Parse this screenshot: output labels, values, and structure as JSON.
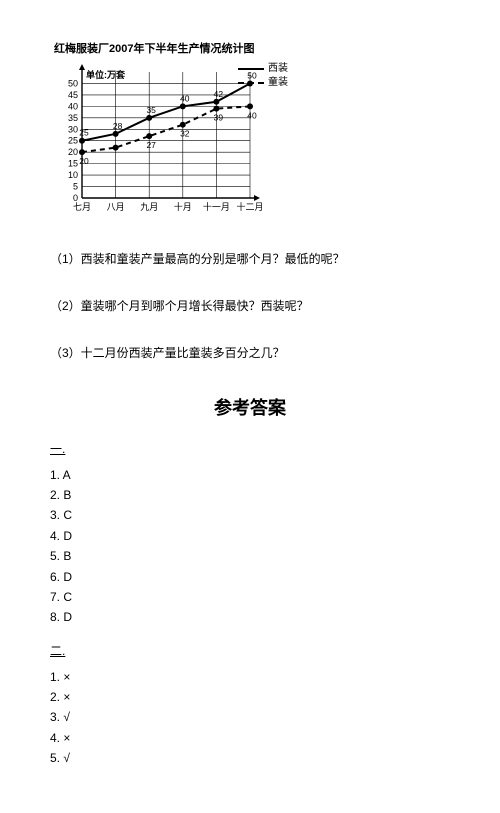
{
  "chart": {
    "title": "红梅服装厂2007年下半年生产情况统计图",
    "unit_label": "单位:万套",
    "legend": {
      "series_a": "西装",
      "series_b": "童装"
    },
    "y": {
      "min": 0,
      "max": 55,
      "ticks": [
        0,
        5,
        10,
        15,
        20,
        25,
        30,
        35,
        40,
        45,
        50
      ]
    },
    "x_labels": [
      "七月",
      "八月",
      "九月",
      "十月",
      "十一月",
      "十二月"
    ],
    "series_a": {
      "values": [
        25,
        28,
        35,
        40,
        42,
        50
      ],
      "show_labels": [
        25,
        28,
        35,
        40,
        42,
        50
      ],
      "color": "#000000"
    },
    "series_b": {
      "values": [
        20,
        22,
        27,
        32,
        39,
        40
      ],
      "show_labels": [
        20,
        "",
        27,
        32,
        39,
        40
      ],
      "color": "#000000"
    },
    "plot": {
      "bg": "#ffffff",
      "grid_color": "#000000",
      "line_width": 2,
      "marker_size": 3
    }
  },
  "questions": {
    "q1": "（1）西装和童装产量最高的分别是哪个月？最低的呢？",
    "q2": "（2）童装哪个月到哪个月增长得最快？西装呢？",
    "q3": "（3）十二月份西装产量比童装多百分之几？"
  },
  "answers": {
    "title": "参考答案",
    "section1": {
      "label": "一.",
      "items": [
        "1. A",
        "2. B",
        "3. C",
        "4. D",
        "5. B",
        "6. D",
        "7. C",
        "8. D"
      ]
    },
    "section2": {
      "label": "二.",
      "items": [
        "1. ×",
        "2. ×",
        "3. √",
        "4. ×",
        "5. √"
      ]
    }
  }
}
